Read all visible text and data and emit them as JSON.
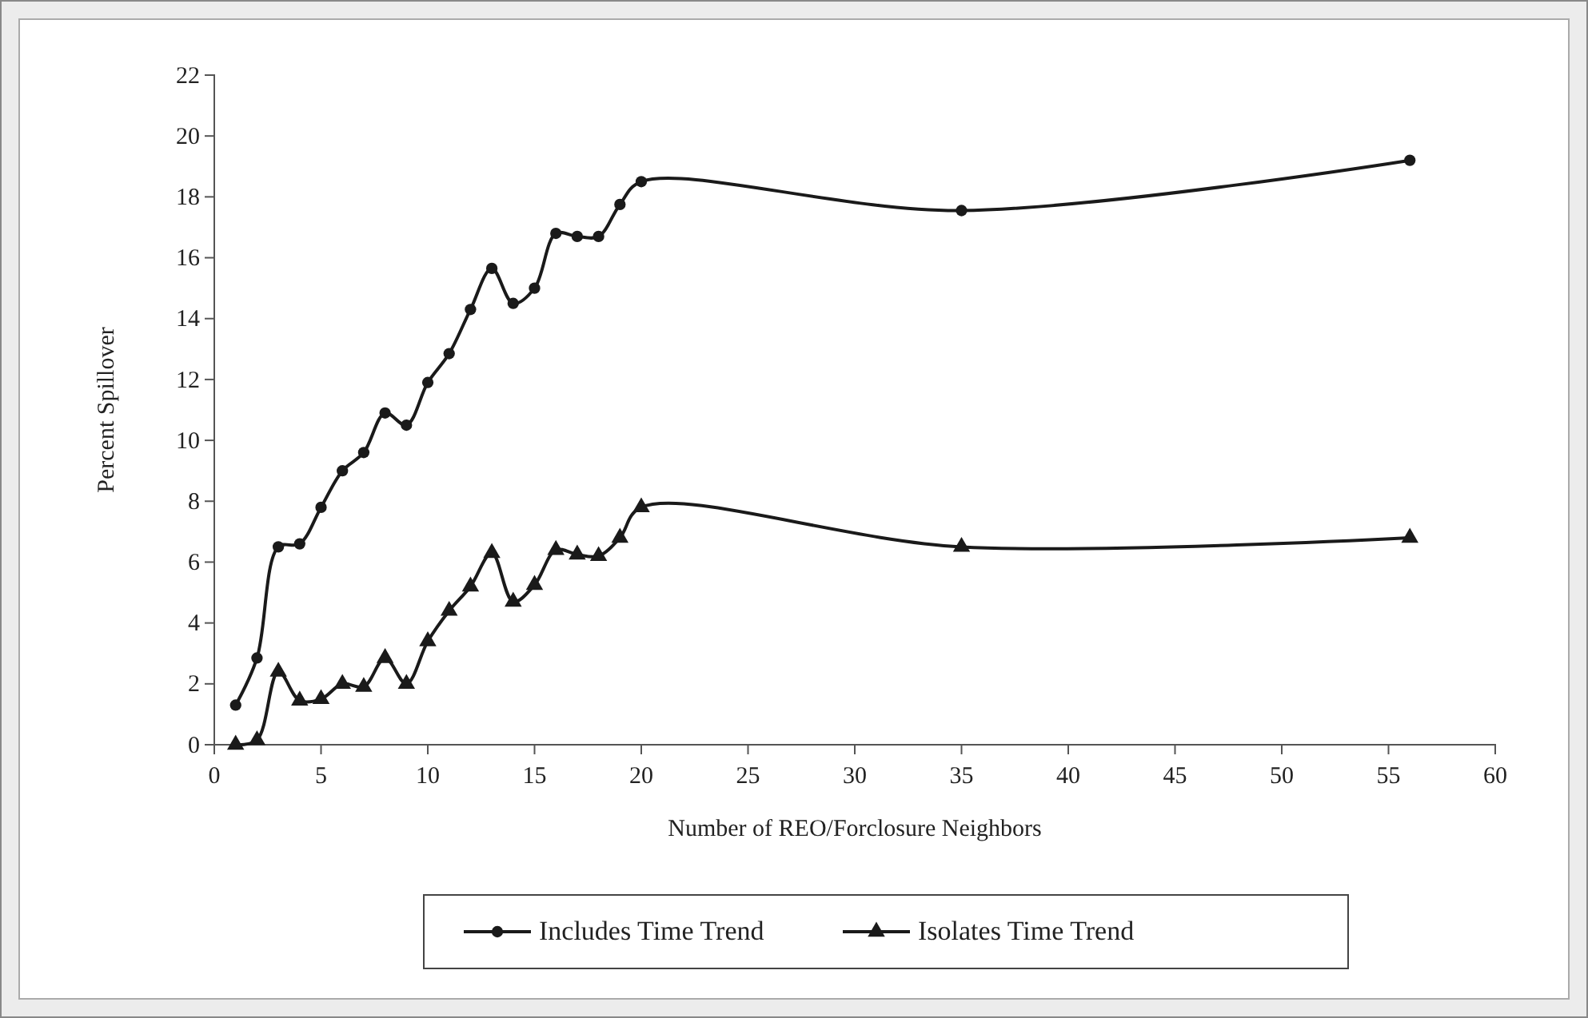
{
  "chart_data": {
    "type": "line",
    "xlabel": "Number of REO/Forclosure Neighbors",
    "ylabel": "Percent Spillover",
    "x": [
      1,
      2,
      3,
      4,
      5,
      6,
      7,
      8,
      9,
      10,
      11,
      12,
      13,
      14,
      15,
      16,
      17,
      18,
      19,
      20,
      35,
      56
    ],
    "series": [
      {
        "name": "Includes Time Trend",
        "color": "#1a1a1a",
        "marker": "circle",
        "values": [
          1.3,
          2.85,
          6.5,
          6.6,
          7.8,
          9.0,
          9.6,
          10.9,
          10.5,
          11.9,
          12.85,
          14.3,
          15.65,
          14.5,
          15.0,
          16.8,
          16.7,
          16.7,
          17.75,
          18.5,
          17.55,
          19.2
        ]
      },
      {
        "name": "Isolates Time Trend",
        "color": "#1a1a1a",
        "marker": "triangle",
        "values": [
          0,
          0.15,
          2.4,
          1.45,
          1.5,
          2.0,
          1.9,
          2.85,
          2.0,
          3.4,
          4.4,
          5.2,
          6.3,
          4.7,
          5.25,
          6.4,
          6.25,
          6.2,
          6.8,
          7.8,
          6.5,
          6.8
        ]
      }
    ],
    "xlim": [
      0,
      60
    ],
    "xticks": [
      0,
      5,
      10,
      15,
      20,
      25,
      30,
      35,
      40,
      45,
      50,
      55,
      60
    ],
    "ylim": [
      0,
      22
    ],
    "yticks": [
      0,
      2,
      4,
      6,
      8,
      10,
      12,
      14,
      16,
      18,
      20,
      22
    ],
    "grid": false,
    "legend": "bottom",
    "line_style": "solid"
  }
}
